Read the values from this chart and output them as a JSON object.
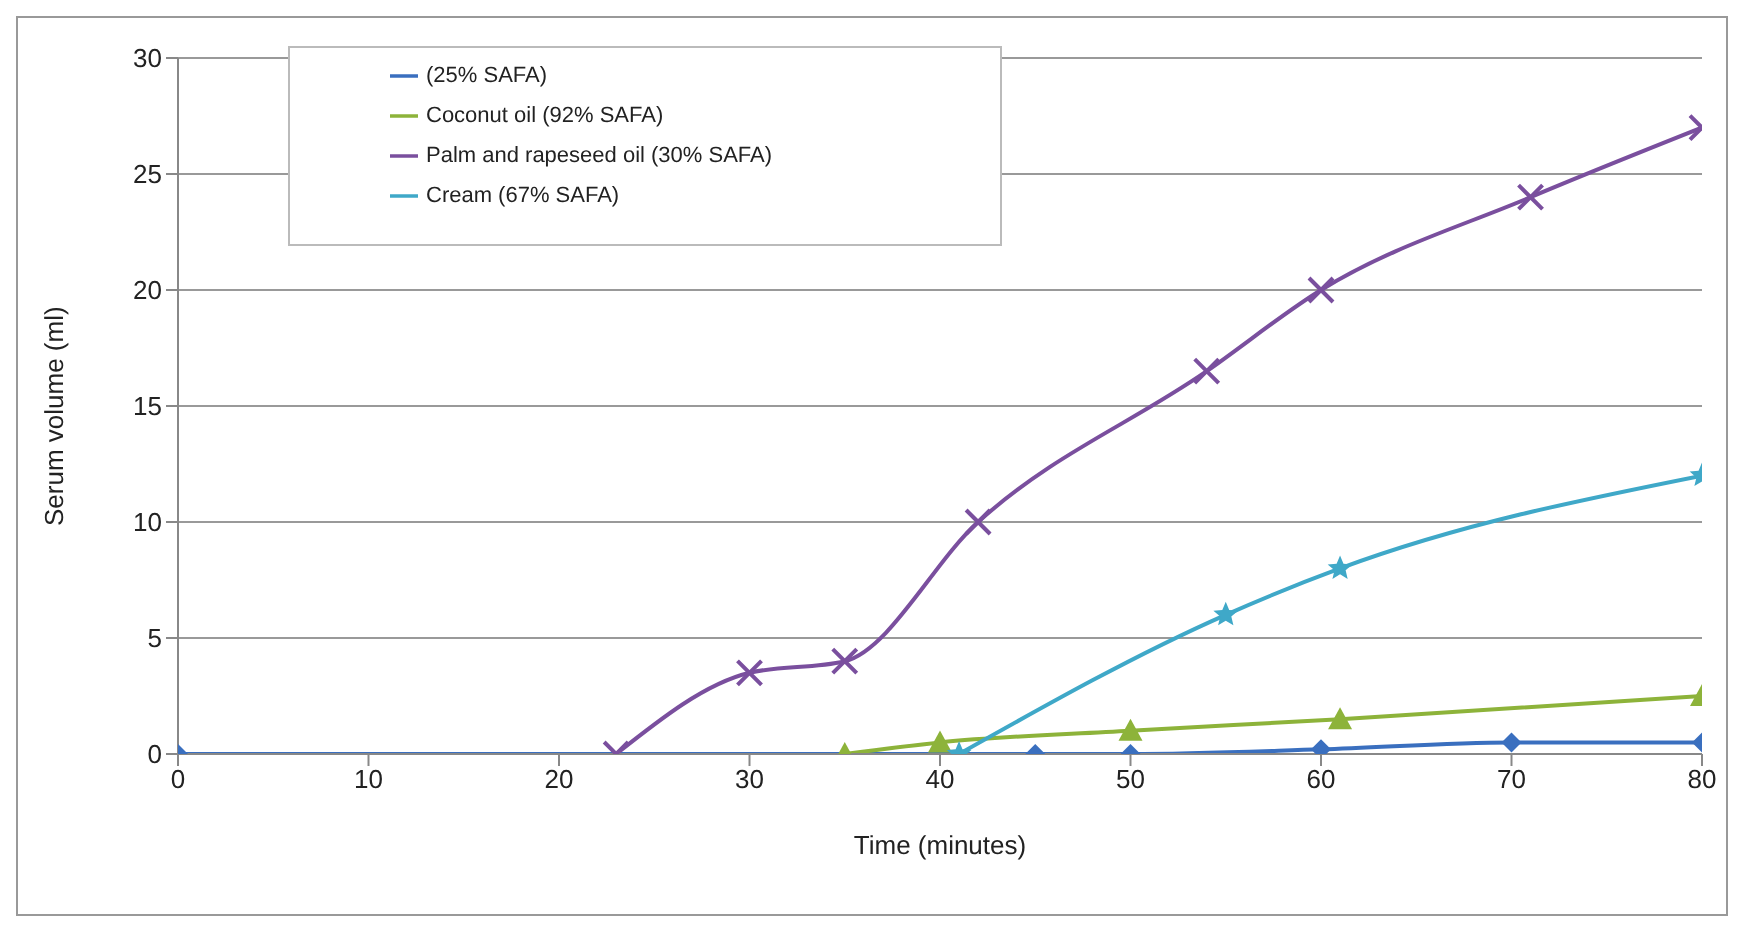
{
  "chart_data": {
    "type": "line",
    "xlabel": "Time (minutes)",
    "ylabel": "Serum volume (ml)",
    "xlim": [
      0,
      80
    ],
    "xticks": [
      0,
      10,
      20,
      30,
      40,
      50,
      60,
      70,
      80
    ],
    "ylim": [
      0,
      30
    ],
    "yticks": [
      0,
      5,
      10,
      15,
      20,
      25,
      30
    ],
    "grid": "y",
    "legend": "top left",
    "line_style": "solid",
    "series": [
      {
        "name": "(25% SAFA)",
        "color": "#3a6fbf",
        "marker": "diamond",
        "x": [
          0,
          45,
          50,
          60,
          70,
          80
        ],
        "values": [
          0,
          0,
          0,
          0.2,
          0.5,
          0.5
        ]
      },
      {
        "name": "Coconut oil (92% SAFA)",
        "color": "#8db33a",
        "marker": "triangle",
        "x": [
          35,
          40,
          50,
          61,
          80
        ],
        "values": [
          0,
          0.5,
          1,
          1.5,
          2.5
        ]
      },
      {
        "name": "Palm and rapeseed oil (30% SAFA)",
        "color": "#7a4f9e",
        "marker": "cross",
        "x": [
          23,
          30,
          35,
          42,
          54,
          60,
          71,
          80
        ],
        "values": [
          0,
          3.5,
          4,
          10,
          16.5,
          20,
          24,
          27
        ]
      },
      {
        "name": "Cream (67% SAFA)",
        "color": "#3fa8c8",
        "marker": "star",
        "x": [
          41,
          55,
          61,
          80
        ],
        "values": [
          0,
          6,
          8,
          12
        ]
      }
    ]
  }
}
